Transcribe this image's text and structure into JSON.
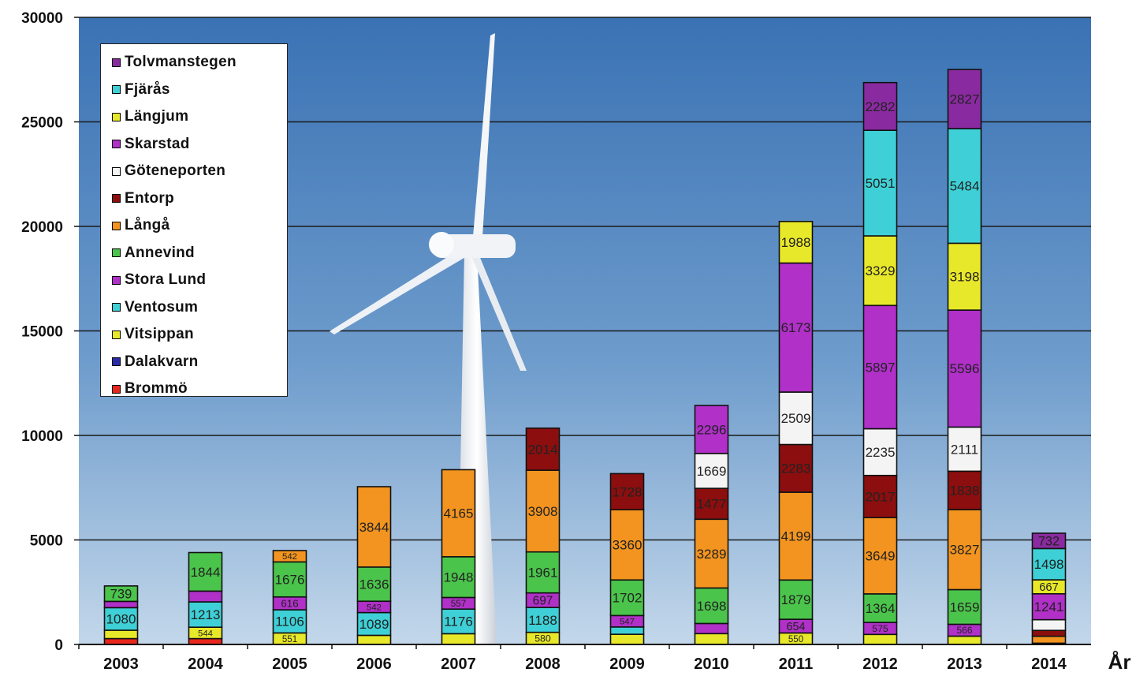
{
  "chart_data": {
    "type": "bar",
    "stacked": true,
    "title": "",
    "xlabel": "År",
    "ylabel": "",
    "ylim": [
      0,
      30000
    ],
    "yticks": [
      0,
      5000,
      10000,
      15000,
      20000,
      25000,
      30000
    ],
    "grid": true,
    "legend_position": "top-left",
    "categories": [
      "2003",
      "2004",
      "2005",
      "2006",
      "2007",
      "2008",
      "2009",
      "2010",
      "2011",
      "2012",
      "2013",
      "2014"
    ],
    "series": [
      {
        "name": "Brommö",
        "color": "#e8261b",
        "values": [
          280,
          280,
          0,
          0,
          0,
          0,
          0,
          0,
          0,
          0,
          0,
          60
        ]
      },
      {
        "name": "Dalakvarn",
        "color": "#2a2aa8",
        "values": [
          0,
          0,
          0,
          0,
          0,
          0,
          0,
          0,
          0,
          0,
          0,
          0
        ]
      },
      {
        "name": "Vitsippan",
        "color": "#e8e82a",
        "values": [
          400,
          544,
          551,
          436,
          514,
          580,
          486,
          518,
          550,
          480,
          398,
          0
        ]
      },
      {
        "name": "Ventosum",
        "color": "#3ed0d6",
        "values": [
          1080,
          1213,
          1106,
          1089,
          1176,
          1188,
          350,
          0,
          0,
          0,
          0,
          0
        ]
      },
      {
        "name": "Stora Lund",
        "color": "#b030c8",
        "values": [
          300,
          515,
          616,
          542,
          557,
          697,
          547,
          485,
          654,
          575,
          566,
          0
        ]
      },
      {
        "name": "Annevind",
        "color": "#4bc44b",
        "values": [
          739,
          1844,
          1676,
          1636,
          1948,
          1961,
          1702,
          1698,
          1879,
          1364,
          1659,
          0
        ]
      },
      {
        "name": "Långå",
        "color": "#f2941f",
        "values": [
          0,
          0,
          542,
          3844,
          4165,
          3908,
          3360,
          3289,
          4199,
          3649,
          3827,
          332
        ]
      },
      {
        "name": "Entorp",
        "color": "#8c0e0e",
        "values": [
          0,
          0,
          0,
          0,
          0,
          2014,
          1728,
          1477,
          2283,
          2017,
          1838,
          280
        ]
      },
      {
        "name": "Göteneporten",
        "color": "#f4f4f4",
        "values": [
          0,
          0,
          0,
          0,
          0,
          0,
          0,
          1669,
          2509,
          2235,
          2111,
          511
        ]
      },
      {
        "name": "Skarstad",
        "color": "#b030c8",
        "values": [
          0,
          0,
          0,
          0,
          0,
          0,
          0,
          2296,
          6173,
          5897,
          5596,
          1241
        ]
      },
      {
        "name": "Längjum",
        "color": "#e8e82a",
        "values": [
          0,
          0,
          0,
          0,
          0,
          0,
          0,
          0,
          1988,
          3329,
          3198,
          667
        ]
      },
      {
        "name": "Fjärås",
        "color": "#3ed0d6",
        "values": [
          0,
          0,
          0,
          0,
          0,
          0,
          0,
          0,
          0,
          5051,
          5484,
          1498
        ]
      },
      {
        "name": "Tolvmanstegen",
        "color": "#8a2aa0",
        "values": [
          0,
          0,
          0,
          0,
          0,
          0,
          0,
          0,
          0,
          2282,
          2827,
          732
        ]
      }
    ],
    "colors": {
      "sky_top": "#3f78b8",
      "sky_bottom": "#b8d0e8",
      "gridline": "#1a1a1a",
      "bar_outline": "#111111",
      "turbine": "#f2f4f6"
    }
  }
}
